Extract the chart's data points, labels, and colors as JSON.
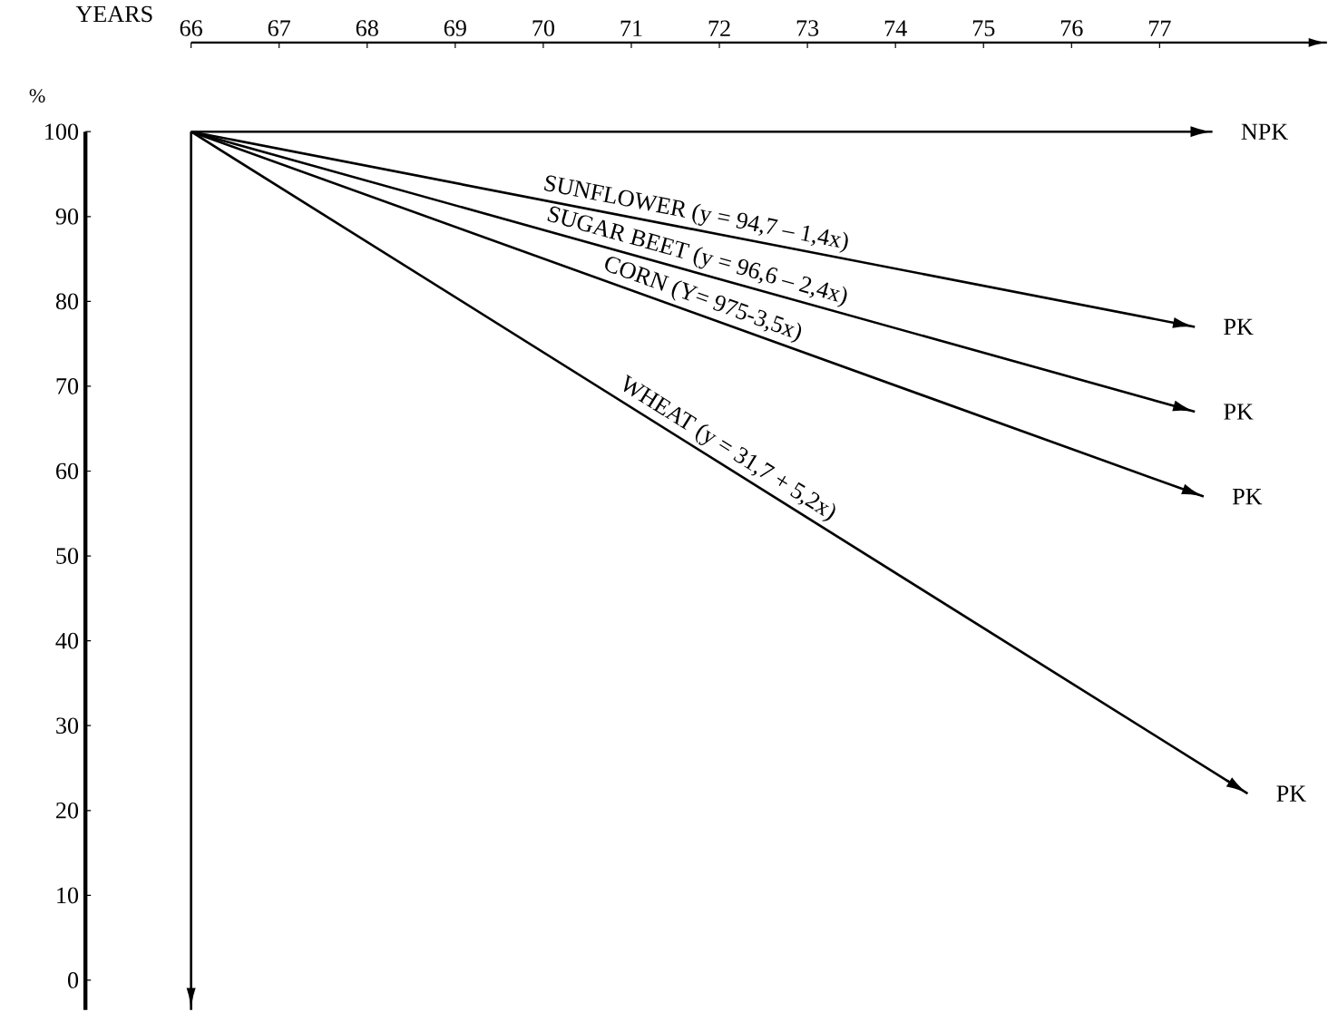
{
  "chart_data": {
    "type": "line",
    "xlabel": "YEARS",
    "ylabel": "%",
    "xlim": [
      64.8,
      78.9
    ],
    "ylim": [
      -3.5,
      110.5
    ],
    "xticks": [
      66,
      67,
      68,
      69,
      70,
      71,
      72,
      73,
      74,
      75,
      76,
      77
    ],
    "yticks": [
      0,
      10,
      20,
      30,
      40,
      50,
      60,
      70,
      80,
      90,
      100
    ],
    "marker": "none",
    "line_style": "solid",
    "series": [
      {
        "color": "#000000",
        "x": [
          66,
          77.6
        ],
        "values": [
          100,
          100
        ]
      },
      {
        "name": "SUNFLOWER (y = 94,7 – 1,4x)",
        "color": "#000000",
        "x": [
          66,
          77.4
        ],
        "values": [
          100,
          77
        ]
      },
      {
        "name": "SUGAR BEET (y = 96,6 – 2,4x)",
        "color": "#000000",
        "x": [
          66,
          77.4
        ],
        "values": [
          100,
          67
        ]
      },
      {
        "name": "CORN (Y= 975-3,5x)",
        "color": "#000000",
        "x": [
          66,
          77.5
        ],
        "values": [
          100,
          57
        ]
      },
      {
        "name": "WHEAT (y = 31,7 + 5,2x)",
        "color": "#000000",
        "x": [
          66,
          78.0
        ],
        "values": [
          100,
          22
        ]
      }
    ],
    "ref_lines": [
      {
        "axis": "x",
        "value": 66
      }
    ],
    "annotations": [
      {
        "text": "NPK",
        "x": 77.6,
        "y": 100
      },
      {
        "text": "PK",
        "x": 77.4,
        "y": 77
      },
      {
        "text": "PK",
        "x": 77.4,
        "y": 67
      },
      {
        "text": "PK",
        "x": 77.5,
        "y": 57
      },
      {
        "text": "PK",
        "x": 78.0,
        "y": 22
      }
    ]
  }
}
